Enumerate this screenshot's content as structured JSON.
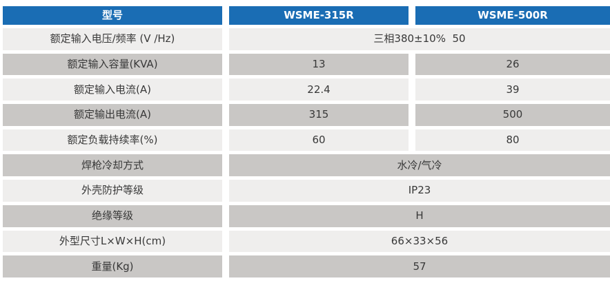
{
  "table": {
    "header": {
      "col1": "型号",
      "col2": "WSME-315R",
      "col3": "WSME-500R"
    },
    "rows": [
      {
        "label": "额定输入电压/频率 (V /Hz)",
        "span": "三相380±10%  50"
      },
      {
        "label": "额定输入容量(KVA)",
        "v1": "13",
        "v2": "26"
      },
      {
        "label": "额定输入电流(A)",
        "v1": "22.4",
        "v2": "39"
      },
      {
        "label": "额定输出电流(A)",
        "v1": "315",
        "v2": "500"
      },
      {
        "label": "额定负载持续率(%)",
        "v1": "60",
        "v2": "80"
      },
      {
        "label": "焊枪冷却方式",
        "span": "水冷/气冷"
      },
      {
        "label": "外壳防护等级",
        "span": "IP23"
      },
      {
        "label": "绝缘等级",
        "span": "H"
      },
      {
        "label": "外型尺寸L×W×H(cm)",
        "span": "66×33×56"
      },
      {
        "label": "重量(Kg)",
        "span": "57"
      }
    ],
    "colors": {
      "header_bg": "#1a6db4",
      "header_text": "#ffffff",
      "row_light": "#efeeed",
      "row_dark": "#c9c7c5",
      "body_text": "#383838"
    }
  }
}
